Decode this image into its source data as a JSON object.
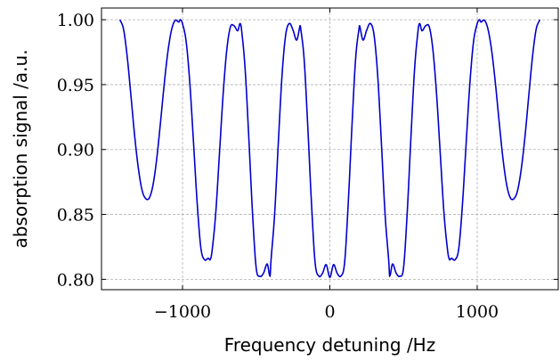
{
  "chart_data": {
    "type": "line",
    "title": "",
    "xlabel": "Frequency detuning /Hz",
    "ylabel": "absorption signal /a.u.",
    "xlim": [
      -1550,
      1550
    ],
    "ylim": [
      0.792,
      1.009
    ],
    "xticks": [
      -1000,
      0,
      1000
    ],
    "xtick_labels": [
      "−1000",
      "0",
      "1000"
    ],
    "yticks": [
      0.8,
      0.85,
      0.9,
      0.95,
      1.0
    ],
    "ytick_labels": [
      "0.80",
      "0.85",
      "0.90",
      "0.95",
      "1.00"
    ],
    "grid": true,
    "legend": "none",
    "series": [
      {
        "color": "#0000cc",
        "x": [
          -1425,
          -1400,
          -1375,
          -1350,
          -1325,
          -1300,
          -1275,
          -1250,
          -1225,
          -1200,
          -1175,
          -1150,
          -1125,
          -1100,
          -1075,
          -1050,
          -1025,
          -1015,
          -1000,
          -975,
          -950,
          -925,
          -900,
          -875,
          -850,
          -825,
          -812,
          -800,
          -775,
          -750,
          -725,
          -700,
          -675,
          -650,
          -625,
          -610,
          -600,
          -575,
          -550,
          -525,
          -500,
          -475,
          -450,
          -425,
          -406,
          -400,
          -375,
          -350,
          -325,
          -300,
          -275,
          -250,
          -225,
          -203,
          -200,
          -175,
          -150,
          -125,
          -100,
          -75,
          -50,
          -25,
          0,
          25,
          50,
          75,
          100,
          125,
          150,
          175,
          200,
          203,
          225,
          250,
          275,
          300,
          325,
          350,
          375,
          400,
          406,
          425,
          450,
          475,
          500,
          525,
          550,
          575,
          600,
          610,
          625,
          650,
          675,
          700,
          725,
          750,
          775,
          800,
          812,
          825,
          850,
          875,
          900,
          925,
          950,
          975,
          1000,
          1015,
          1025,
          1050,
          1075,
          1100,
          1125,
          1150,
          1175,
          1200,
          1225,
          1250,
          1275,
          1300,
          1325,
          1350,
          1375,
          1400,
          1425
        ],
        "y": [
          1.0,
          0.9925,
          0.971,
          0.9413,
          0.9106,
          0.8857,
          0.8688,
          0.8622,
          0.8628,
          0.8729,
          0.893,
          0.9203,
          0.9495,
          0.9747,
          0.9919,
          0.9995,
          0.9982,
          1.0,
          0.9969,
          0.9829,
          0.9504,
          0.9046,
          0.8578,
          0.8237,
          0.8151,
          0.8162,
          0.8152,
          0.8214,
          0.8504,
          0.8955,
          0.9415,
          0.9763,
          0.9944,
          0.9953,
          0.9915,
          0.997,
          0.9929,
          0.9619,
          0.9087,
          0.8512,
          0.8087,
          0.8023,
          0.8048,
          0.8118,
          0.8025,
          0.8137,
          0.8498,
          0.9047,
          0.9565,
          0.9882,
          0.9971,
          0.992,
          0.9843,
          0.995,
          0.9949,
          0.9702,
          0.918,
          0.8592,
          0.8127,
          0.8025,
          0.8046,
          0.8113,
          0.8015,
          0.8113,
          0.8046,
          0.8025,
          0.8127,
          0.8592,
          0.918,
          0.9702,
          0.9949,
          0.995,
          0.9843,
          0.992,
          0.9971,
          0.9882,
          0.9565,
          0.9047,
          0.8498,
          0.8137,
          0.8025,
          0.8118,
          0.8048,
          0.8023,
          0.8087,
          0.8512,
          0.9087,
          0.9619,
          0.9929,
          0.997,
          0.9915,
          0.9953,
          0.9944,
          0.9763,
          0.9415,
          0.8955,
          0.8504,
          0.8214,
          0.8152,
          0.8162,
          0.8151,
          0.8237,
          0.8578,
          0.9046,
          0.9504,
          0.9829,
          0.9969,
          1.0,
          0.9982,
          0.9995,
          0.9919,
          0.9747,
          0.9495,
          0.9203,
          0.893,
          0.8729,
          0.8628,
          0.8622,
          0.8688,
          0.8857,
          0.9106,
          0.9413,
          0.971,
          0.9925,
          1.0
        ]
      }
    ]
  }
}
